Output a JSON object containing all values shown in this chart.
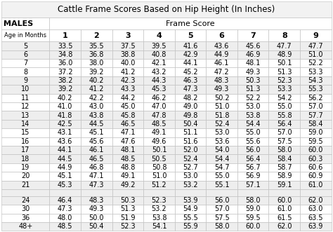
{
  "title": "Cattle Frame Scores Based on Hip Height (In Inches)",
  "col_header_label": "Frame Score",
  "row_header_label1": "MALES",
  "row_header_label2": "Age in Months",
  "frame_scores": [
    "1",
    "2",
    "3",
    "4",
    "5",
    "6",
    "7",
    "8",
    "9"
  ],
  "ages": [
    "5",
    "6",
    "7",
    "8",
    "9",
    "10",
    "11",
    "12",
    "13",
    "14",
    "15",
    "16",
    "17",
    "18",
    "19",
    "20",
    "21",
    "",
    "24",
    "30",
    "36",
    "48+"
  ],
  "data": [
    [
      33.5,
      35.5,
      37.5,
      39.5,
      41.6,
      43.6,
      45.6,
      47.7,
      47.7
    ],
    [
      34.8,
      36.8,
      38.8,
      40.8,
      42.9,
      44.9,
      46.9,
      48.9,
      51.0
    ],
    [
      36.0,
      38.0,
      40.0,
      42.1,
      44.1,
      46.1,
      48.1,
      50.1,
      52.2
    ],
    [
      37.2,
      39.2,
      41.2,
      43.2,
      45.2,
      47.2,
      49.3,
      51.3,
      53.3
    ],
    [
      38.2,
      40.2,
      42.3,
      44.3,
      46.3,
      48.3,
      50.3,
      52.3,
      54.3
    ],
    [
      39.2,
      41.2,
      43.3,
      45.3,
      47.3,
      49.3,
      51.3,
      53.3,
      55.3
    ],
    [
      40.2,
      42.2,
      44.2,
      46.2,
      48.2,
      50.2,
      52.2,
      54.2,
      56.2
    ],
    [
      41.0,
      43.0,
      45.0,
      47.0,
      49.0,
      51.0,
      53.0,
      55.0,
      57.0
    ],
    [
      41.8,
      43.8,
      45.8,
      47.8,
      49.8,
      51.8,
      53.8,
      55.8,
      57.7
    ],
    [
      42.5,
      44.5,
      46.5,
      48.5,
      50.4,
      52.4,
      54.4,
      56.4,
      58.4
    ],
    [
      43.1,
      45.1,
      47.1,
      49.1,
      51.1,
      53.0,
      55.0,
      57.0,
      59.0
    ],
    [
      43.6,
      45.6,
      47.6,
      49.6,
      51.6,
      53.6,
      55.6,
      57.5,
      59.5
    ],
    [
      44.1,
      46.1,
      48.1,
      50.1,
      52.0,
      54.0,
      56.0,
      58.0,
      60.0
    ],
    [
      44.5,
      46.5,
      48.5,
      50.5,
      52.4,
      54.4,
      56.4,
      58.4,
      60.3
    ],
    [
      44.9,
      46.8,
      48.8,
      50.8,
      52.7,
      54.7,
      56.7,
      58.7,
      60.6
    ],
    [
      45.1,
      47.1,
      49.1,
      51.0,
      53.0,
      55.0,
      56.9,
      58.9,
      60.9
    ],
    [
      45.3,
      47.3,
      49.2,
      51.2,
      53.2,
      55.1,
      57.1,
      59.1,
      61.0
    ],
    [
      "",
      "",
      "",
      "",
      "",
      "",
      "",
      "",
      ""
    ],
    [
      46.4,
      48.3,
      50.3,
      52.3,
      53.9,
      56.0,
      58.0,
      60.0,
      62.0
    ],
    [
      47.3,
      49.3,
      51.3,
      53.2,
      54.9,
      57.0,
      59.0,
      61.0,
      63.0
    ],
    [
      48.0,
      50.0,
      51.9,
      53.8,
      55.5,
      57.5,
      59.5,
      61.5,
      63.5
    ],
    [
      48.5,
      50.4,
      52.3,
      54.1,
      55.9,
      58.0,
      60.0,
      62.0,
      63.9
    ]
  ],
  "shaded_rows": [
    0,
    1,
    4,
    5,
    8,
    9,
    12,
    13,
    16,
    17,
    18,
    21
  ],
  "shaded_color": "#eeeeee",
  "white_color": "#ffffff",
  "header_bg": "#ffffff",
  "border_color": "#bbbbbb",
  "title_fontsize": 8.5,
  "header_fontsize": 8,
  "cell_fontsize": 7,
  "age_col_bold": false
}
